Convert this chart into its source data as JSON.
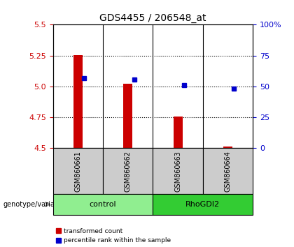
{
  "title": "GDS4455 / 206548_at",
  "samples": [
    "GSM860661",
    "GSM860662",
    "GSM860663",
    "GSM860664"
  ],
  "red_values": [
    5.253,
    5.02,
    4.755,
    4.515
  ],
  "blue_values": [
    5.07,
    5.055,
    5.01,
    4.985
  ],
  "ylim_left": [
    4.5,
    5.5
  ],
  "ylim_right": [
    0,
    100
  ],
  "yticks_left": [
    4.5,
    4.75,
    5.0,
    5.25,
    5.5
  ],
  "yticks_right": [
    0,
    25,
    50,
    75,
    100
  ],
  "ytick_labels_right": [
    "0",
    "25",
    "50",
    "75",
    "100%"
  ],
  "groups": [
    {
      "label": "control",
      "samples": [
        0,
        1
      ],
      "color": "#90EE90"
    },
    {
      "label": "RhoGDI2",
      "samples": [
        2,
        3
      ],
      "color": "#33CC33"
    }
  ],
  "left_color": "#CC0000",
  "right_color": "#0000CC",
  "sample_bg_color": "#CCCCCC",
  "bar_width": 0.18,
  "genotype_label": "genotype/variation",
  "legend_red": "transformed count",
  "legend_blue": "percentile rank within the sample"
}
